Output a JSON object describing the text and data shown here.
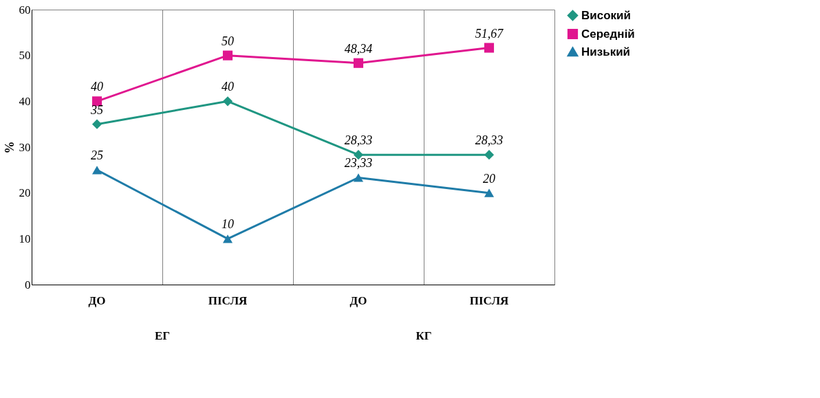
{
  "chart_data": {
    "type": "line",
    "categories": [
      "ДО",
      "ПІСЛЯ",
      "ДО",
      "ПІСЛЯ"
    ],
    "ylabel": "%",
    "ylim": [
      0,
      60
    ],
    "yticks": [
      0,
      10,
      20,
      30,
      40,
      50,
      60
    ],
    "grid": "x",
    "legend": "right",
    "line_style": "solid",
    "annotations": [
      {
        "text": "ЕГ"
      },
      {
        "text": "КГ"
      }
    ],
    "series": [
      {
        "name": "Високий",
        "color": "#1f9682",
        "marker": "diamond",
        "values": [
          35,
          40,
          28.33,
          28.33
        ],
        "value_labels": [
          "35",
          "40",
          "28,33",
          "28,33"
        ]
      },
      {
        "name": "Середній",
        "color": "#e0168f",
        "marker": "square",
        "values": [
          40,
          50,
          48.34,
          51.67
        ],
        "value_labels": [
          "40",
          "50",
          "48,34",
          "51,67"
        ]
      },
      {
        "name": "Низький",
        "color": "#1f7ca8",
        "marker": "triangle",
        "values": [
          25,
          10,
          23.33,
          20
        ],
        "value_labels": [
          "25",
          "10",
          "23,33",
          "20"
        ]
      }
    ]
  }
}
